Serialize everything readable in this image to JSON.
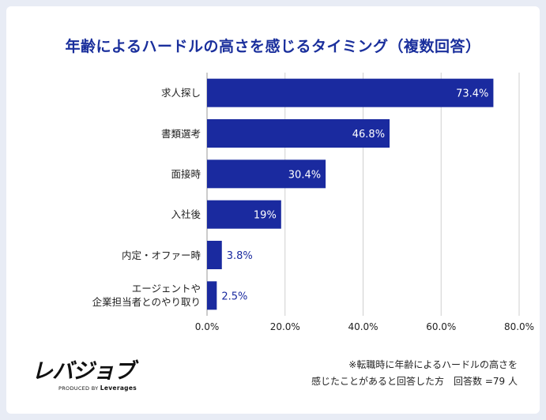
{
  "chart_data": {
    "type": "bar",
    "orientation": "horizontal",
    "title": "年齢によるハードルの高さを感じるタイミング（複数回答）",
    "categories": [
      "求人探し",
      "書類選考",
      "面接時",
      "入社後",
      "内定・オファー時",
      "エージェントや\n企業担当者とのやり取り"
    ],
    "values": [
      73.4,
      46.8,
      30.4,
      19,
      3.8,
      2.5
    ],
    "value_labels": [
      "73.4%",
      "46.8%",
      "30.4%",
      "19%",
      "3.8%",
      "2.5%"
    ],
    "xlim": [
      0,
      80
    ],
    "xticks": [
      0,
      20,
      40,
      60,
      80
    ],
    "xtick_labels": [
      "0.0%",
      "20.0%",
      "40.0%",
      "60.0%",
      "80.0%"
    ],
    "bar_color": "#1a2a9f",
    "grid": true
  },
  "logo": {
    "name": "レバジョブ",
    "tagline_prefix": "PRODUCED BY",
    "tagline_brand": "Leverages"
  },
  "note": {
    "line1": "※転職時に年齢によるハードルの高さを",
    "line2": "感じたことがあると回答した方　回答数 =79 人"
  },
  "colors": {
    "background": "#e8ecf5",
    "card": "#ffffff",
    "title": "#1a2f9c"
  }
}
